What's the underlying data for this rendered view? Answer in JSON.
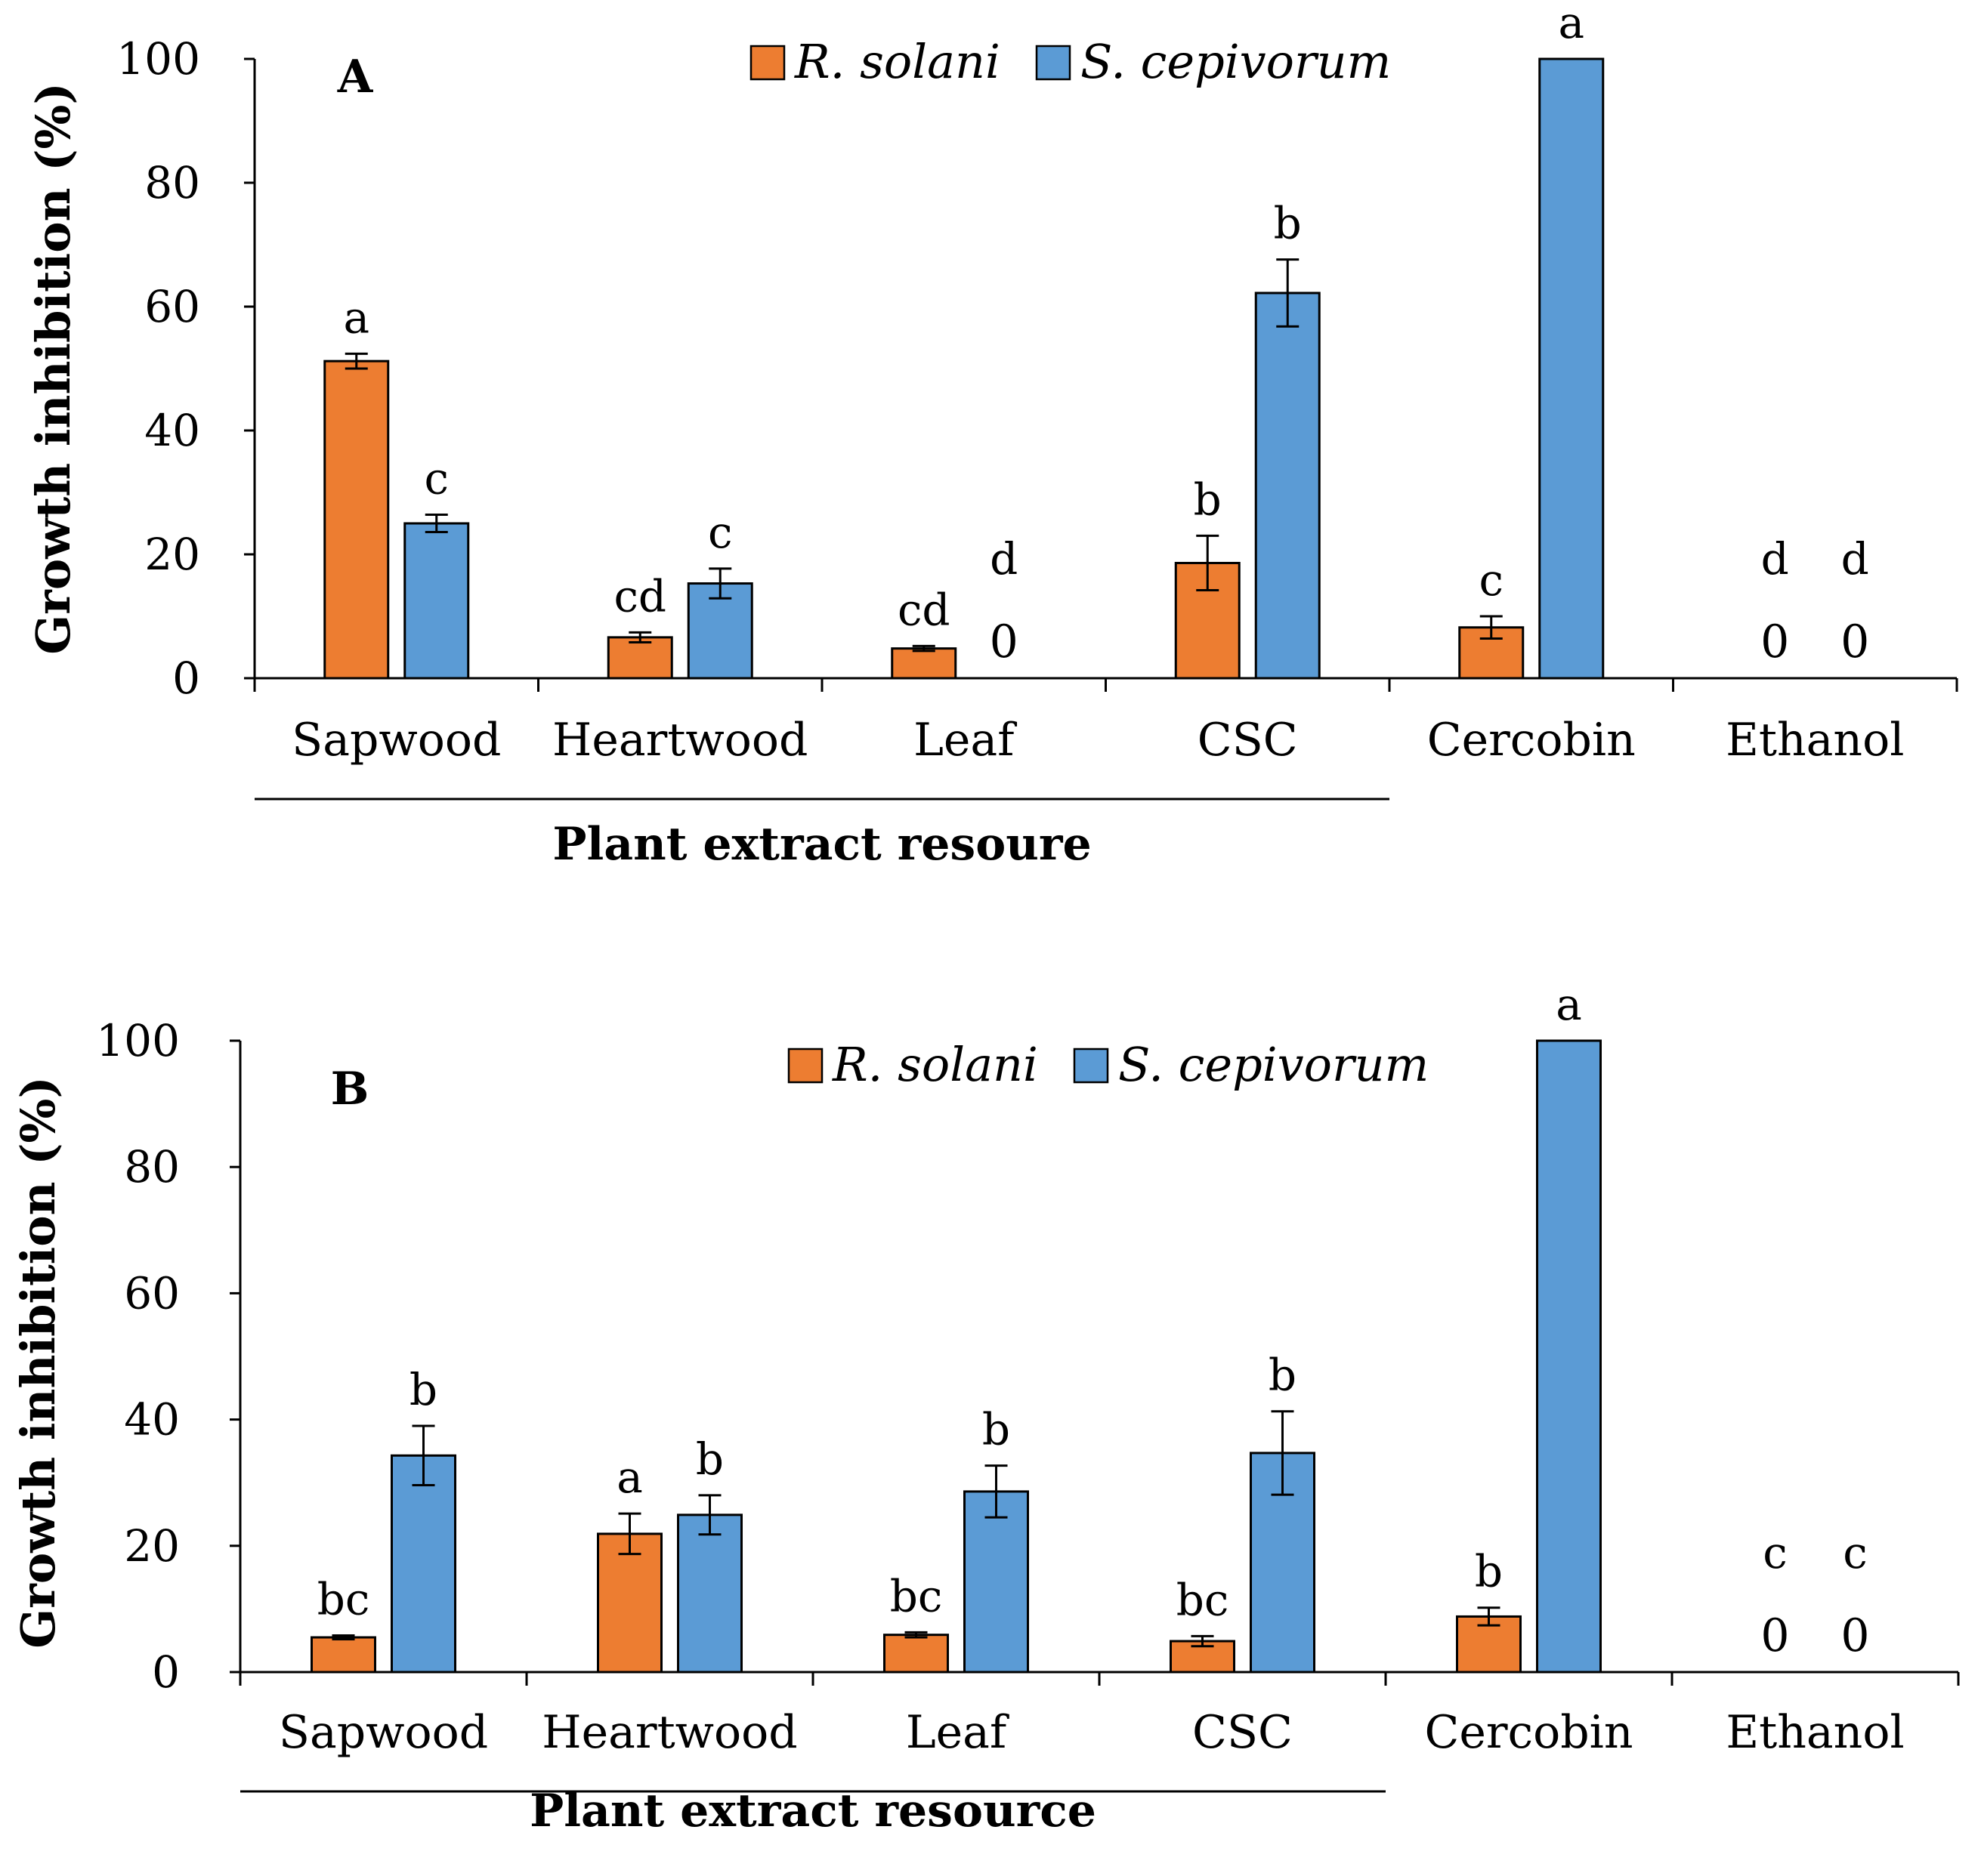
{
  "chart_data": [
    {
      "type": "bar",
      "panel_label": "A",
      "ylabel": "Growth inhibition (%)",
      "xlabel": "Plant extract resoure",
      "ylim": [
        0,
        100
      ],
      "yticks": [
        "0",
        "20",
        "40",
        "60",
        "80",
        "100"
      ],
      "categories": [
        "Sapwood",
        "Heartwood",
        "Leaf",
        "CSC",
        "Cercobin",
        "Ethanol"
      ],
      "grouped_categories": [
        "Sapwood",
        "Heartwood",
        "Leaf",
        "CSC"
      ],
      "legend_position": "top-center",
      "series": [
        {
          "name": "R. solani",
          "values": [
            51.2,
            6.6,
            4.8,
            18.6,
            8.2,
            0
          ],
          "errors": [
            1.2,
            0.8,
            0.4,
            4.4,
            1.8,
            0
          ],
          "letters": [
            "a",
            "cd",
            "cd",
            "b",
            "c",
            "d"
          ],
          "zero_labels": [
            "",
            "",
            "",
            "",
            "",
            "0"
          ]
        },
        {
          "name": "S. cepivorum",
          "values": [
            25.0,
            15.3,
            0,
            62.2,
            100,
            0
          ],
          "errors": [
            1.4,
            2.4,
            0,
            5.4,
            0,
            0
          ],
          "letters": [
            "c",
            "c",
            "d",
            "b",
            "a",
            "d"
          ],
          "zero_labels": [
            "",
            "",
            "0",
            "",
            "",
            "0"
          ]
        }
      ]
    },
    {
      "type": "bar",
      "panel_label": "B",
      "ylabel": "Growth inhibition (%)",
      "xlabel": "Plant extract resource",
      "ylim": [
        0,
        100
      ],
      "yticks": [
        "0",
        "20",
        "40",
        "60",
        "80",
        "100"
      ],
      "categories": [
        "Sapwood",
        "Heartwood",
        "Leaf",
        "CSC",
        "Cercobin",
        "Ethanol"
      ],
      "grouped_categories": [
        "Sapwood",
        "Heartwood",
        "Leaf",
        "CSC"
      ],
      "legend_position": "top-center",
      "series": [
        {
          "name": "R. solani",
          "values": [
            5.5,
            21.9,
            5.9,
            4.9,
            8.8,
            0
          ],
          "errors": [
            0.3,
            3.2,
            0.4,
            0.8,
            1.4,
            0
          ],
          "letters": [
            "bc",
            "a",
            "bc",
            "bc",
            "b",
            "c"
          ],
          "zero_labels": [
            "",
            "",
            "",
            "",
            "",
            "0"
          ]
        },
        {
          "name": "S. cepivorum",
          "values": [
            34.3,
            24.9,
            28.6,
            34.7,
            100,
            0
          ],
          "errors": [
            4.7,
            3.1,
            4.1,
            6.6,
            0,
            0
          ],
          "letters": [
            "b",
            "b",
            "b",
            "b",
            "a",
            "c"
          ],
          "zero_labels": [
            "",
            "",
            "",
            "",
            "",
            "0"
          ]
        }
      ]
    }
  ],
  "colors": {
    "r_solani": "#ed7d31",
    "s_cepivorum": "#5b9bd5",
    "outline": "#000000"
  }
}
